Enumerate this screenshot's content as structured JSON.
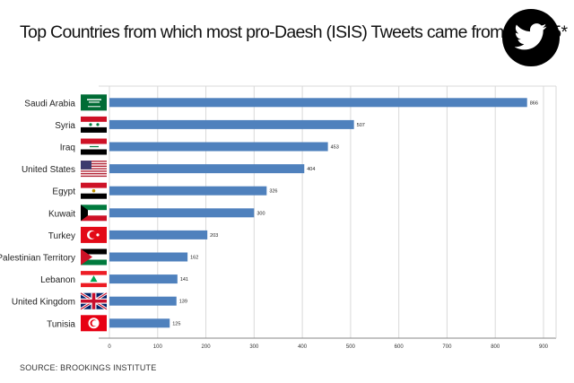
{
  "title": "Top Countries from which most pro-Daesh (ISIS) Tweets came from in 2015*",
  "source": "SOURCE: BROOKINGS INSTITUTE",
  "logo": {
    "icon": "twitter-bird-icon"
  },
  "colors": {
    "bar": "#4f81bd",
    "grid": "#d9d9d9",
    "axis": "#888888"
  },
  "chart_data": {
    "type": "bar",
    "orientation": "horizontal",
    "categories": [
      "Saudi Arabia",
      "Syria",
      "Iraq",
      "United States",
      "Egypt",
      "Kuwait",
      "Turkey",
      "Palestinian Territory",
      "Lebanon",
      "United Kingdom",
      "Tunisia"
    ],
    "values": [
      866,
      507,
      453,
      404,
      326,
      300,
      203,
      162,
      141,
      139,
      125
    ],
    "flags": [
      "saudi-arabia-flag-icon",
      "syria-flag-icon",
      "iraq-flag-icon",
      "united-states-flag-icon",
      "egypt-flag-icon",
      "kuwait-flag-icon",
      "turkey-flag-icon",
      "palestine-flag-icon",
      "lebanon-flag-icon",
      "united-kingdom-flag-icon",
      "tunisia-flag-icon"
    ],
    "xlim": [
      0,
      900
    ],
    "xticks": [
      0,
      100,
      200,
      300,
      400,
      500,
      600,
      700,
      800,
      900
    ],
    "grid": true,
    "data_labels": true
  }
}
